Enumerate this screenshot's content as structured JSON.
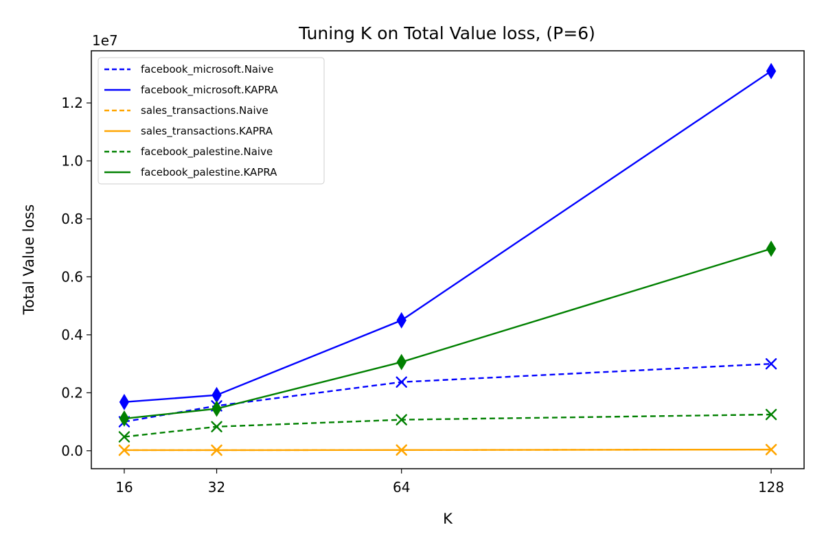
{
  "chart_data": {
    "type": "line",
    "title": "Tuning K on Total Value loss, (P=6)",
    "xlabel": "K",
    "ylabel": "Total Value loss",
    "y_offset_label": "1e7",
    "x": [
      16,
      32,
      64,
      128
    ],
    "x_ticks": [
      "16",
      "32",
      "64",
      "128"
    ],
    "y_ticks": [
      "0.0",
      "0.2",
      "0.4",
      "0.6",
      "0.8",
      "1.0",
      "1.2"
    ],
    "y_tick_values": [
      0,
      2000000,
      4000000,
      6000000,
      8000000,
      10000000,
      12000000
    ],
    "xlim": [
      10.3,
      133.7
    ],
    "ylim": [
      -620000,
      13800000
    ],
    "grid": false,
    "legend_position": "top-left",
    "series": [
      {
        "name": "facebook_microsoft.Naive",
        "color": "#0000ff",
        "dashed": true,
        "marker": "x",
        "values": [
          1000000,
          1550000,
          2370000,
          3000000
        ]
      },
      {
        "name": "facebook_microsoft.KAPRA",
        "color": "#0000ff",
        "dashed": false,
        "marker": "diamond",
        "values": [
          1680000,
          1920000,
          4500000,
          13100000
        ]
      },
      {
        "name": "sales_transactions.Naive",
        "color": "#ffa500",
        "dashed": true,
        "marker": "x",
        "values": [
          20000,
          20000,
          25000,
          40000
        ]
      },
      {
        "name": "sales_transactions.KAPRA",
        "color": "#ffa500",
        "dashed": false,
        "marker": "x",
        "values": [
          20000,
          20000,
          25000,
          40000
        ]
      },
      {
        "name": "facebook_palestine.Naive",
        "color": "#008000",
        "dashed": true,
        "marker": "x",
        "values": [
          480000,
          830000,
          1070000,
          1250000
        ]
      },
      {
        "name": "facebook_palestine.KAPRA",
        "color": "#008000",
        "dashed": false,
        "marker": "diamond",
        "values": [
          1110000,
          1450000,
          3060000,
          6970000
        ]
      }
    ]
  }
}
